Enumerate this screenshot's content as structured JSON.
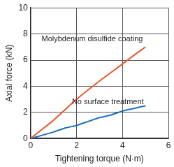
{
  "chart_data": {
    "type": "line",
    "x_label": "Tightening torque (N·m)",
    "y_label": "Axial force (kN)",
    "xlim": [
      0,
      6
    ],
    "xticks": [
      0,
      2,
      4,
      6
    ],
    "ylim": [
      0,
      10
    ],
    "yticks": [
      0,
      2,
      4,
      6,
      8,
      10
    ],
    "grid": true,
    "series": [
      {
        "name": "Molybdenum disulfide coating",
        "color": "#e8562a",
        "x": [
          0,
          1,
          2,
          3,
          4,
          4.6,
          5
        ],
        "values": [
          0,
          1.4,
          3.0,
          4.4,
          5.7,
          6.5,
          7.0
        ]
      },
      {
        "name": "No surface treatment",
        "color": "#1f6fb8",
        "x": [
          0,
          1,
          1.5,
          2,
          2.5,
          3,
          3.5,
          4,
          4.5,
          5
        ],
        "values": [
          0,
          0.5,
          0.8,
          1.0,
          1.3,
          1.6,
          1.8,
          2.1,
          2.3,
          2.5
        ]
      }
    ]
  }
}
